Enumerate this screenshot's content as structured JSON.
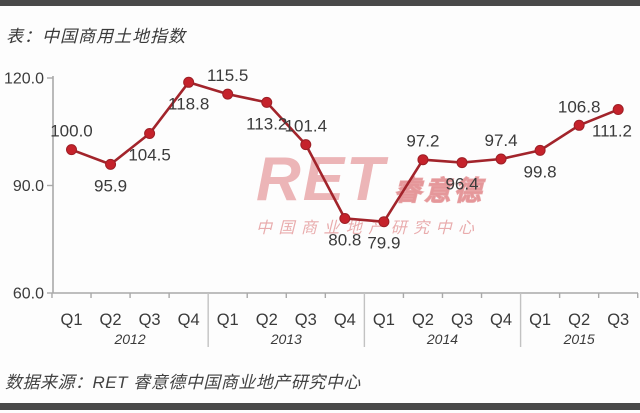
{
  "page": {
    "source": "数据来源：RET 睿意德中国商业地产研究中心"
  },
  "watermark": {
    "brand": "RET",
    "brand_cn": "睿意德",
    "subtitle": "中 国 商 业 地 产 研 究 中 心"
  },
  "chart_data": {
    "type": "line",
    "title": "表：中国商用土地指数",
    "x": [
      "Q1",
      "Q2",
      "Q3",
      "Q4",
      "Q1",
      "Q2",
      "Q3",
      "Q4",
      "Q1",
      "Q2",
      "Q3",
      "Q4",
      "Q1",
      "Q2",
      "Q3"
    ],
    "year_groups": [
      {
        "label": "2012",
        "quarters": 4
      },
      {
        "label": "2013",
        "quarters": 4
      },
      {
        "label": "2014",
        "quarters": 4
      },
      {
        "label": "2015",
        "quarters": 3
      }
    ],
    "values": [
      100.0,
      95.9,
      104.5,
      118.8,
      115.5,
      113.2,
      101.4,
      80.8,
      79.9,
      97.2,
      96.4,
      97.4,
      99.8,
      106.8,
      111.2
    ],
    "point_labels": [
      "100.0",
      "95.9",
      "104.5",
      "118.8",
      "115.5",
      "113.2",
      "101.4",
      "80.8",
      "79.9",
      "97.2",
      "96.4",
      "97.4",
      "99.8",
      "106.8",
      "111.2"
    ],
    "label_position": [
      "above",
      "below",
      "below",
      "below",
      "above",
      "below",
      "above",
      "below",
      "below",
      "above",
      "below",
      "above",
      "below",
      "above",
      "below"
    ],
    "ylim": [
      60,
      120
    ],
    "yticks": [
      120,
      90,
      60
    ],
    "ytick_labels": [
      "120.0",
      "90.0",
      "60.0"
    ],
    "grid": false,
    "legend": null,
    "colors": {
      "line": "#a2242b",
      "marker": "#c5222b",
      "marker_edge": "#9c1f26",
      "axis": "#a9a9a9",
      "year_divider": "#c2c2c2",
      "text": "#3b3b3b"
    }
  }
}
